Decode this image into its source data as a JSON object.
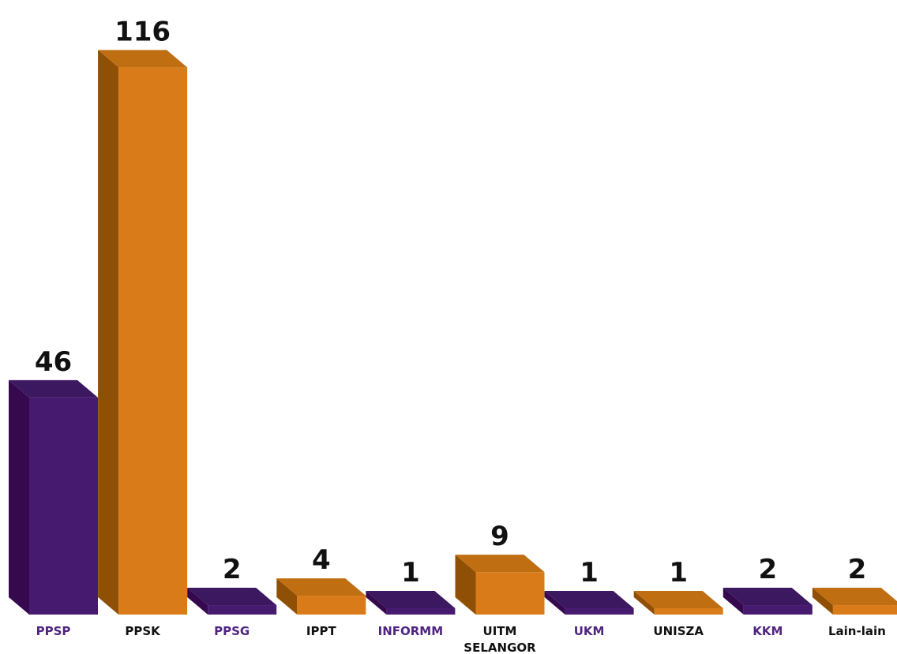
{
  "chart_data": {
    "type": "bar",
    "style": "3d",
    "categories": [
      "PPSP",
      "PPSK",
      "PPSG",
      "IPPT",
      "INFORMM",
      "UITM SELANGOR",
      "UKM",
      "UNISZA",
      "KKM",
      "Lain-lain"
    ],
    "category_lines": [
      [
        "PPSP"
      ],
      [
        "PPSK"
      ],
      [
        "PPSG"
      ],
      [
        "IPPT"
      ],
      [
        "INFORMM"
      ],
      [
        "UITM",
        "SELANGOR"
      ],
      [
        "UKM"
      ],
      [
        "UNISZA"
      ],
      [
        "KKM"
      ],
      [
        "Lain-lain"
      ]
    ],
    "values": [
      46,
      116,
      2,
      4,
      1,
      9,
      1,
      1,
      2,
      2
    ],
    "bar_colors": [
      "purple",
      "orange",
      "purple",
      "orange",
      "purple",
      "orange",
      "purple",
      "orange",
      "purple",
      "orange"
    ],
    "label_colors": [
      "purple",
      "dark",
      "purple",
      "dark",
      "purple",
      "dark",
      "purple",
      "dark",
      "purple",
      "dark"
    ],
    "title": "",
    "xlabel": "",
    "ylabel": "",
    "grid": false,
    "legend": "none"
  },
  "colors": {
    "purple": {
      "front": "#461a6e",
      "side": "#36094f",
      "top": "#3c1860"
    },
    "orange": {
      "front": "#d97b18",
      "side": "#8f4f04",
      "top": "#c06e12"
    },
    "label_purple": "#4f2580",
    "label_dark": "#111111",
    "value_text": "#111111"
  }
}
